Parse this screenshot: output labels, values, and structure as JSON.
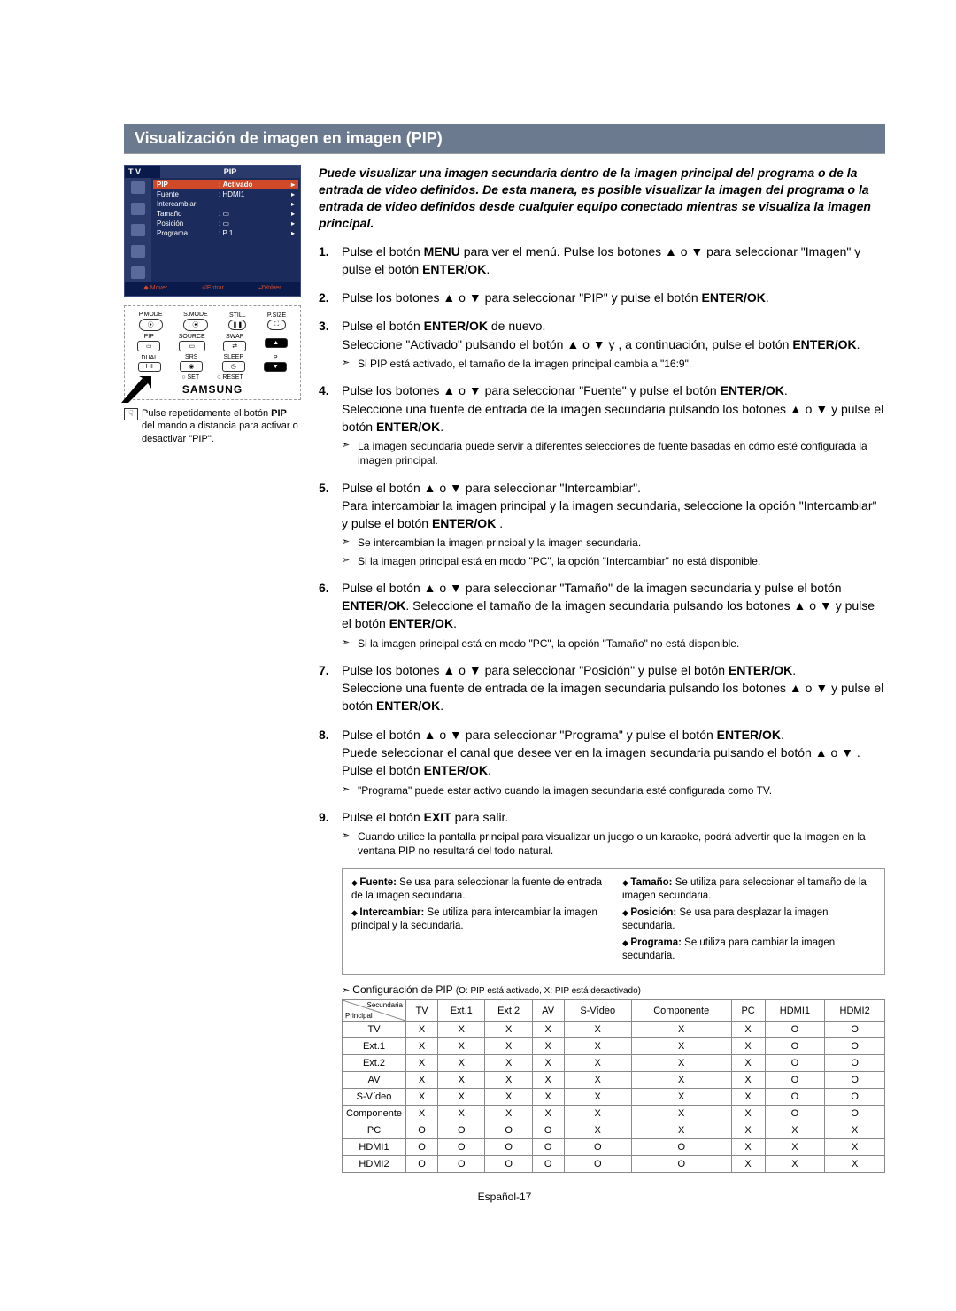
{
  "title": "Visualización de imagen en imagen (PIP)",
  "tvmenu": {
    "tv": "T V",
    "pip": "PIP",
    "rows": [
      {
        "label": "PIP",
        "value": ": Activado",
        "active": true
      },
      {
        "label": "Fuente",
        "value": ": HDMI1",
        "active": false
      },
      {
        "label": "Intercambiar",
        "value": "",
        "active": false
      },
      {
        "label": "Tamaño",
        "value": ": ▭",
        "active": false
      },
      {
        "label": "Posición",
        "value": ": ▭",
        "active": false
      },
      {
        "label": "Programa",
        "value": ": P 1",
        "active": false
      }
    ],
    "footer": [
      "◆ Mover",
      "⏎Entrar",
      "⮐Volver"
    ]
  },
  "remote": {
    "row1": [
      "P.MODE",
      "S.MODE",
      "STILL",
      "P.SIZE"
    ],
    "row2": [
      "PIP",
      "SOURCE",
      "SWAP"
    ],
    "row3": [
      "DUAL",
      "SRS",
      "SLEEP",
      "P"
    ],
    "bottom": [
      "○ SET",
      "○ RESET"
    ],
    "brand": "SAMSUNG"
  },
  "sidenote": "Pulse repetidamente el botón PIP del mando a distancia para activar o desactivar \"PIP\".",
  "intro": "Puede visualizar una imagen secundaria dentro de la imagen principal del programa o de la entrada de video definidos. De esta manera, es posible visualizar la imagen del programa o la entrada de video definidos desde cualquier equipo conectado mientras se visualiza la imagen principal.",
  "steps": {
    "s1a": "Pulse el botón ",
    "s1b": "MENU",
    "s1c": " para ver el menú. Pulse los botones ▲ o ▼ para seleccionar \"Imagen\" y pulse el botón ",
    "s1d": "ENTER/OK",
    "s1e": ".",
    "s2a": "Pulse los botones ▲ o ▼ para seleccionar \"PIP\" y pulse el botón ",
    "s2b": "ENTER/OK",
    "s2c": ".",
    "s3a": "Pulse el botón ",
    "s3b": "ENTER/OK",
    "s3c": " de nuevo.",
    "s3d": "Seleccione \"Activado\" pulsando el botón ▲ o ▼ y , a continuación, pulse el botón ",
    "s3e": "ENTER/OK",
    "s3f": ".",
    "s3sub": "Si PIP está activado, el tamaño de la imagen principal cambia a \"16:9\".",
    "s4a": "Pulse los botones ▲ o ▼ para seleccionar \"Fuente\" y pulse el botón ",
    "s4b": "ENTER/OK",
    "s4c": ".",
    "s4d": "Seleccione una fuente de entrada de la imagen secundaria pulsando los botones ▲ o ▼ y pulse el botón ",
    "s4e": "ENTER/OK",
    "s4f": ".",
    "s4sub": "La imagen secundaria puede servir a diferentes selecciones de fuente basadas en cómo esté configurada la imagen principal.",
    "s5a": "Pulse el botón ▲ o ▼ para seleccionar \"Intercambiar\".",
    "s5b": "Para intercambiar la imagen principal y la imagen secundaria, seleccione la opción \"Intercambiar\" y pulse el botón ",
    "s5c": "ENTER/OK",
    "s5d": " .",
    "s5sub1": "Se intercambian la imagen principal y la imagen secundaria.",
    "s5sub2": "Si la imagen principal está en modo \"PC\", la opción \"Intercambiar\" no está disponible.",
    "s6a": "Pulse el botón ▲ o ▼ para seleccionar \"Tamaño\" de la imagen secundaria y pulse el botón ",
    "s6b": "ENTER/OK",
    "s6c": ". Seleccione el tamaño de la imagen secundaria pulsando los botones ▲ o ▼ y pulse el botón ",
    "s6d": "ENTER/OK",
    "s6e": ".",
    "s6sub": "Si la imagen principal está en modo \"PC\", la opción \"Tamaño\" no está disponible.",
    "s7a": "Pulse los botones ▲ o ▼ para seleccionar \"Posición\" y pulse el botón ",
    "s7b": "ENTER/OK",
    "s7c": ".",
    "s7d": "Seleccione una fuente de entrada de la imagen secundaria pulsando los botones ▲ o ▼ y pulse el botón ",
    "s7e": "ENTER/OK",
    "s7f": ".",
    "s8a": "Pulse el botón ▲ o ▼ para seleccionar \"Programa\" y pulse el botón ",
    "s8b": "ENTER/OK",
    "s8c": ".",
    "s8d": "Puede seleccionar el canal que desee ver en la imagen secundaria pulsando el botón ▲ o ▼ .",
    "s8e": "Pulse el botón ",
    "s8f": "ENTER/OK",
    "s8g": ".",
    "s8sub": "\"Programa\" puede estar activo cuando la imagen secundaria esté configurada como TV.",
    "s9a": "Pulse el botón ",
    "s9b": "EXIT",
    "s9c": " para salir.",
    "s9sub": "Cuando utilice la pantalla principal para visualizar un juego o un karaoke, podrá advertir que la imagen en la ventana PIP no resultará del todo natural."
  },
  "defs": {
    "left": [
      {
        "t": "Fuente:",
        "d": " Se usa para seleccionar la fuente de entrada de la imagen secundaria."
      },
      {
        "t": "Intercambiar:",
        "d": " Se utiliza para intercambiar la imagen principal y la secundaria."
      }
    ],
    "right": [
      {
        "t": "Tamaño:",
        "d": " Se utiliza para seleccionar el tamaño de la imagen secundaria."
      },
      {
        "t": "Posición:",
        "d": " Se usa para desplazar la imagen secundaria."
      },
      {
        "t": "Programa:",
        "d": " Se utiliza para cambiar la imagen secundaria."
      }
    ]
  },
  "cfgtitle": "Configuración de PIP ",
  "cfgnote": "(O: PIP está activado, X: PIP está desactivado)",
  "table": {
    "corner_sec": "Secundaria",
    "corner_pri": "Principal",
    "cols": [
      "TV",
      "Ext.1",
      "Ext.2",
      "AV",
      "S-Vídeo",
      "Componente",
      "PC",
      "HDMI1",
      "HDMI2"
    ],
    "rows": [
      {
        "h": "TV",
        "c": [
          "X",
          "X",
          "X",
          "X",
          "X",
          "X",
          "X",
          "O",
          "O"
        ]
      },
      {
        "h": "Ext.1",
        "c": [
          "X",
          "X",
          "X",
          "X",
          "X",
          "X",
          "X",
          "O",
          "O"
        ]
      },
      {
        "h": "Ext.2",
        "c": [
          "X",
          "X",
          "X",
          "X",
          "X",
          "X",
          "X",
          "O",
          "O"
        ]
      },
      {
        "h": "AV",
        "c": [
          "X",
          "X",
          "X",
          "X",
          "X",
          "X",
          "X",
          "O",
          "O"
        ]
      },
      {
        "h": "S-Vídeo",
        "c": [
          "X",
          "X",
          "X",
          "X",
          "X",
          "X",
          "X",
          "O",
          "O"
        ]
      },
      {
        "h": "Componente",
        "c": [
          "X",
          "X",
          "X",
          "X",
          "X",
          "X",
          "X",
          "O",
          "O"
        ]
      },
      {
        "h": "PC",
        "c": [
          "O",
          "O",
          "O",
          "O",
          "X",
          "X",
          "X",
          "X",
          "X"
        ]
      },
      {
        "h": "HDMI1",
        "c": [
          "O",
          "O",
          "O",
          "O",
          "O",
          "O",
          "X",
          "X",
          "X"
        ]
      },
      {
        "h": "HDMI2",
        "c": [
          "O",
          "O",
          "O",
          "O",
          "O",
          "O",
          "X",
          "X",
          "X"
        ]
      }
    ]
  },
  "pagenum": "Español-17"
}
